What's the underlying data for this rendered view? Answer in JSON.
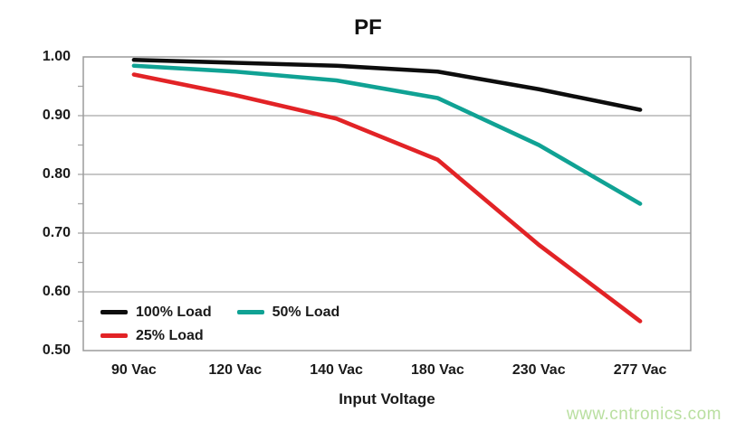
{
  "chart_data": {
    "type": "line",
    "title": "PF",
    "xlabel": "Input Voltage",
    "ylabel": "",
    "categories": [
      "90 Vac",
      "120 Vac",
      "140 Vac",
      "180 Vac",
      "230 Vac",
      "277 Vac"
    ],
    "series": [
      {
        "name": "100% Load",
        "color": "#0d0d0d",
        "values": [
          0.995,
          0.99,
          0.985,
          0.975,
          0.945,
          0.91
        ]
      },
      {
        "name": "50% Load",
        "color": "#10a294",
        "values": [
          0.985,
          0.975,
          0.96,
          0.93,
          0.85,
          0.75
        ]
      },
      {
        "name": "25% Load",
        "color": "#e22326",
        "values": [
          0.97,
          0.935,
          0.895,
          0.825,
          0.68,
          0.55
        ]
      }
    ],
    "ylim": [
      0.5,
      1.0
    ],
    "yticks": [
      1.0,
      0.9,
      0.8,
      0.7,
      0.6,
      0.5
    ],
    "ytick_minor_step": 0.05,
    "grid": "horizontal",
    "legend_position": "inside-bottom-left"
  },
  "colors": {
    "grid": "#a6a6a6",
    "border": "#9c9c9c"
  },
  "watermark": {
    "text": "www.cntronics.com",
    "color": "#b9dfa0"
  }
}
